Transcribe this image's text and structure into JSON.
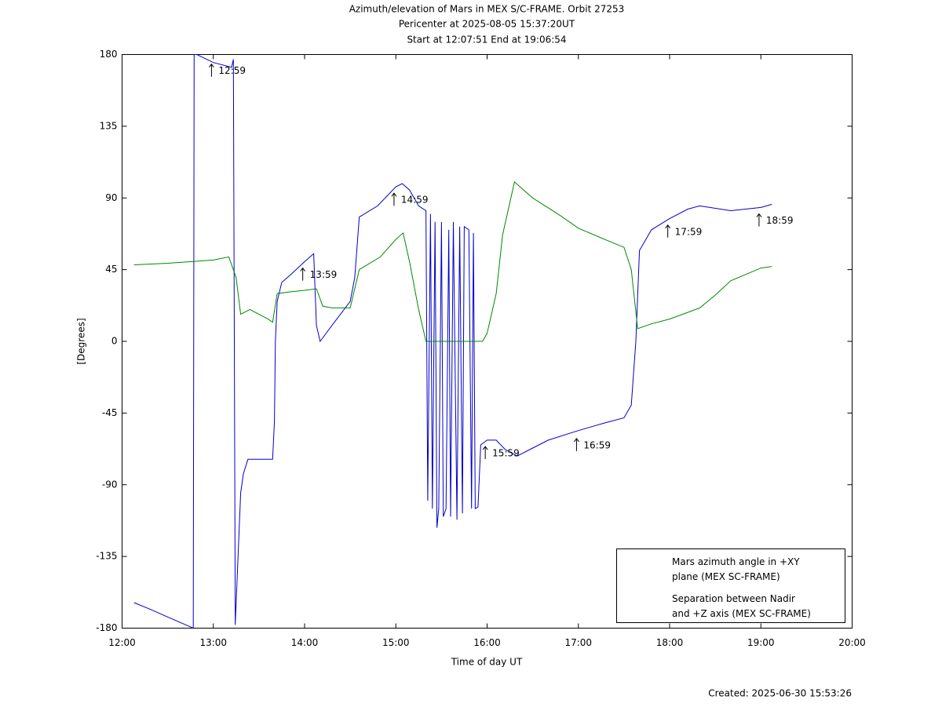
{
  "chart_data": {
    "type": "line",
    "title": "Azimuth/elevation of Mars in MEX S/C-FRAME.  Orbit 27253",
    "subtitle": [
      "Pericenter at 2025-08-05 15:37:20UT",
      "Start at 12:07:51 End at 19:06:54"
    ],
    "xlabel": "Time of day UT",
    "ylabel": "[Degrees]",
    "footer": "Created: 2025-06-30 15:53:26",
    "xlim": [
      12,
      20
    ],
    "xticks": [
      {
        "value": 12,
        "label": "12:00"
      },
      {
        "value": 13,
        "label": "13:00"
      },
      {
        "value": 14,
        "label": "14:00"
      },
      {
        "value": 15,
        "label": "15:00"
      },
      {
        "value": 16,
        "label": "16:00"
      },
      {
        "value": 17,
        "label": "17:00"
      },
      {
        "value": 18,
        "label": "18:00"
      },
      {
        "value": 19,
        "label": "19:00"
      },
      {
        "value": 20,
        "label": "20:00"
      }
    ],
    "ylim": [
      -180,
      180
    ],
    "yticks": [
      -180,
      -135,
      -90,
      -45,
      0,
      45,
      90,
      135,
      180
    ],
    "grid": false,
    "legend": "lower right",
    "series": [
      {
        "name": "Mars azimuth angle in +XY\nplane (MEX SC-FRAME)",
        "color": "#0000cc",
        "x": [
          12.131,
          12.3,
          12.5,
          12.7,
          12.78,
          12.79,
          12.82,
          13.0,
          13.2,
          13.22,
          13.24,
          13.26,
          13.3,
          13.33,
          13.38,
          13.65,
          13.67,
          13.68,
          13.7,
          13.75,
          13.85,
          14.0,
          14.1,
          14.13,
          14.17,
          14.3,
          14.5,
          14.55,
          14.6,
          14.8,
          15.0,
          15.07,
          15.15,
          15.25,
          15.33,
          15.35,
          15.38,
          15.4,
          15.43,
          15.45,
          15.47,
          15.5,
          15.52,
          15.55,
          15.58,
          15.6,
          15.63,
          15.67,
          15.7,
          15.73,
          15.75,
          15.8,
          15.83,
          15.85,
          15.87,
          15.9,
          15.93,
          16.0,
          16.1,
          16.2,
          16.33,
          16.5,
          16.67,
          17.0,
          17.3,
          17.5,
          17.58,
          17.63,
          17.67,
          17.8,
          18.0,
          18.2,
          18.33,
          18.67,
          19.0,
          19.12
        ],
        "values": [
          -164,
          -168,
          -173,
          -178,
          -180,
          180,
          180,
          175,
          172,
          177,
          -178,
          -150,
          -95,
          -83,
          -74,
          -74,
          -50,
          0,
          25,
          37,
          42,
          50,
          55,
          10,
          0,
          10,
          25,
          40,
          78,
          85,
          97,
          99,
          95,
          85,
          82,
          -100,
          80,
          -105,
          75,
          -117,
          -105,
          75,
          -110,
          -105,
          70,
          -110,
          75,
          -112,
          72,
          -108,
          72,
          70,
          -105,
          68,
          -105,
          -104,
          -65,
          -62,
          -62,
          -68,
          -72,
          -67,
          -62,
          -56,
          -51,
          -48,
          -40,
          0,
          57,
          70,
          77,
          83,
          85,
          82,
          84,
          86
        ]
      },
      {
        "name": "Separation between Nadir\nand +Z axis (MEX SC-FRAME)",
        "color": "#008800",
        "x": [
          12.131,
          12.5,
          13.0,
          13.17,
          13.25,
          13.3,
          13.4,
          13.6,
          13.65,
          13.7,
          13.83,
          14.0,
          14.13,
          14.2,
          14.3,
          14.5,
          14.6,
          14.83,
          15.0,
          15.08,
          15.15,
          15.25,
          15.33,
          15.95,
          16.0,
          16.1,
          16.17,
          16.3,
          16.5,
          16.8,
          17.0,
          17.33,
          17.5,
          17.58,
          17.65,
          17.8,
          18.0,
          18.33,
          18.5,
          18.67,
          19.0,
          19.12
        ],
        "values": [
          48,
          49,
          51,
          53,
          40,
          17,
          20,
          14,
          12,
          30,
          31,
          32,
          33,
          22,
          21,
          21,
          45,
          53,
          64,
          68,
          50,
          20,
          0,
          0,
          5,
          30,
          67,
          100,
          90,
          79,
          71,
          63,
          59,
          45,
          8,
          11,
          14,
          21,
          29,
          38,
          46,
          47
        ]
      }
    ],
    "annotations": [
      {
        "text": "12:59",
        "x": 12.98,
        "y": 173
      },
      {
        "text": "13:59",
        "x": 13.98,
        "y": 45
      },
      {
        "text": "14:59",
        "x": 14.98,
        "y": 92
      },
      {
        "text": "15:59",
        "x": 15.98,
        "y": -67
      },
      {
        "text": "16:59",
        "x": 16.98,
        "y": -62
      },
      {
        "text": "17:59",
        "x": 17.98,
        "y": 72
      },
      {
        "text": "18:59",
        "x": 18.98,
        "y": 79
      }
    ]
  }
}
